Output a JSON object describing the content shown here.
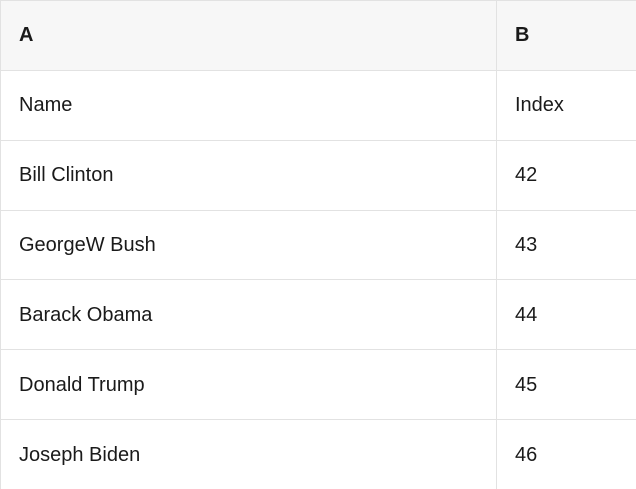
{
  "table": {
    "column_headers": [
      {
        "label": "A"
      },
      {
        "label": "B"
      }
    ],
    "rows": [
      {
        "name": "Name",
        "index": "Index"
      },
      {
        "name": "Bill Clinton",
        "index": "42"
      },
      {
        "name": "GeorgeW Bush",
        "index": "43"
      },
      {
        "name": "Barack Obama",
        "index": "44"
      },
      {
        "name": "Donald Trump",
        "index": "45"
      },
      {
        "name": "Joseph Biden",
        "index": "46"
      }
    ]
  },
  "colors": {
    "header_background": "#f7f7f7",
    "row_background": "#ffffff",
    "border": "#e2e2e2",
    "text": "#1a1a1a"
  }
}
